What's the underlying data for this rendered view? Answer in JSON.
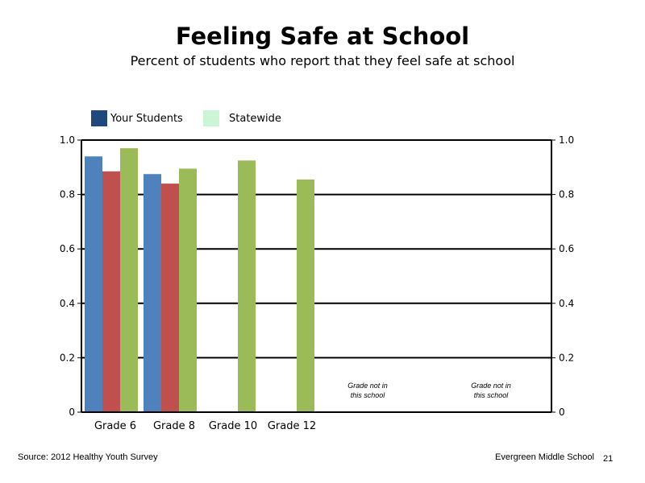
{
  "title": "Feeling Safe at School",
  "subtitle": "Percent of students who report that they feel safe at school",
  "legend": [
    {
      "label": "Your Students",
      "color": "#1f497d"
    },
    {
      "label": "Statewide",
      "color": "#ccf5d6"
    }
  ],
  "footer": {
    "source": "Source: 2012 Healthy Youth Survey",
    "school": "Evergreen Middle  School",
    "page": "21"
  },
  "chart_data": {
    "type": "bar",
    "categories": [
      "Grade 6",
      "Grade 8",
      "Grade 10",
      "Grade 12",
      "",
      ""
    ],
    "series": [
      {
        "color": "#4f81bd",
        "values": [
          0.94,
          0.875,
          null,
          null,
          null,
          null
        ]
      },
      {
        "color": "#c0504d",
        "values": [
          0.885,
          0.84,
          null,
          null,
          null,
          null
        ]
      },
      {
        "color": "#9bbb59",
        "values": [
          0.97,
          0.895,
          0.925,
          0.855,
          null,
          null
        ]
      }
    ],
    "annotations": [
      {
        "category_index": 4,
        "lines": [
          "Grade not in",
          "this school"
        ]
      },
      {
        "category_index": 5,
        "lines": [
          "Grade not in",
          "this school"
        ]
      }
    ],
    "ylim": [
      0,
      1.0
    ],
    "y_ticks_left": [
      "0",
      "0.2",
      "0.4",
      "0.6",
      "0.8",
      "1.0"
    ],
    "y_ticks_right": [
      "0",
      "0.2",
      "0.4",
      "0.6",
      "0.8",
      "1.0"
    ],
    "grid": true,
    "xlabel": "",
    "ylabel": ""
  }
}
